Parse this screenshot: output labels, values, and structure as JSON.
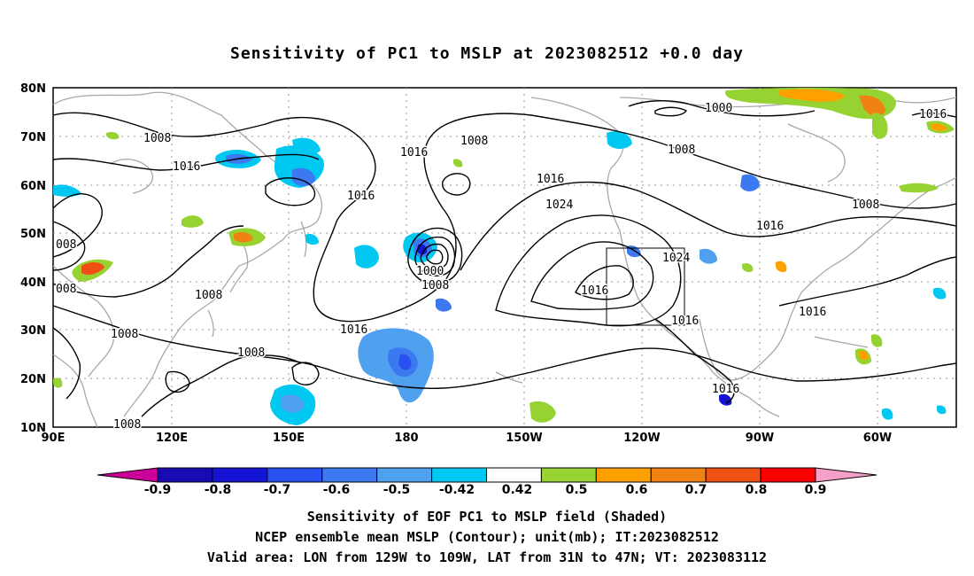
{
  "title": "Sensitivity of PC1 to MSLP at 2023082512 +0.0 day",
  "lat_labels": [
    "80N",
    "70N",
    "60N",
    "50N",
    "40N",
    "30N",
    "20N",
    "10N"
  ],
  "lon_labels": [
    "90E",
    "120E",
    "150E",
    "180",
    "150W",
    "120W",
    "90W",
    "60W"
  ],
  "contour_labels": [
    "1008",
    "1016",
    "1008",
    "1016",
    "1016",
    "1008",
    "1016",
    "1024",
    "1016",
    "1000",
    "1008",
    "1016",
    "1016",
    "1008",
    "1000",
    "1016",
    "008",
    "008",
    "1008",
    "1008",
    "1008",
    "1016",
    "1016",
    "1008",
    "1016",
    "1024",
    "1016",
    "1016",
    "1016",
    "1008"
  ],
  "colorbar": {
    "labels": [
      "-0.9",
      "-0.8",
      "-0.7",
      "-0.6",
      "-0.5",
      "-0.42",
      "0.42",
      "0.5",
      "0.6",
      "0.7",
      "0.8",
      "0.9"
    ],
    "colors": [
      "#cc0099",
      "#1a0ab4",
      "#1414d2",
      "#2850f0",
      "#3c78f0",
      "#50a0f0",
      "#00c8f0",
      "#ffffff",
      "#96d232",
      "#ffa000",
      "#f08214",
      "#f05014",
      "#ff0000",
      "#f5a0c8"
    ]
  },
  "caption": {
    "line1": "Sensitivity of EOF PC1 to MSLP field (Shaded)",
    "line2": "NCEP ensemble mean MSLP (Contour); unit(mb); IT:2023082512",
    "line3": "Valid area: LON from 129W to 109W, LAT from 31N to 47N; VT: 2023083112"
  }
}
